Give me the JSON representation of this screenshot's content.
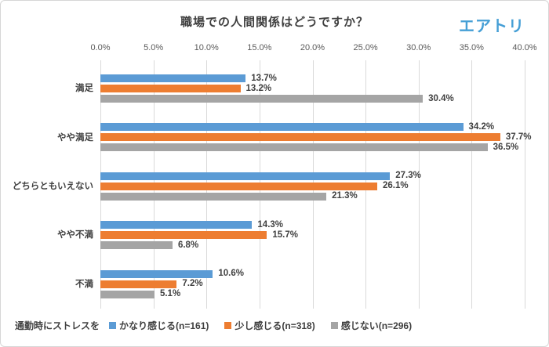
{
  "header": {
    "title": "職場での人間関係はどうですか？",
    "logo_text": "エアトリ",
    "logo_color": "#459fd6"
  },
  "legend": {
    "title": "通勤時にストレスを"
  },
  "chart_data": {
    "type": "bar",
    "orientation": "horizontal",
    "title": "職場での人間関係はどうですか？",
    "categories": [
      "満足",
      "やや満足",
      "どちらともいえない",
      "やや不満",
      "不満"
    ],
    "series": [
      {
        "name": "かなり感じる(n=161)",
        "color": "#5B9BD5",
        "values": [
          13.7,
          34.2,
          27.3,
          14.3,
          10.6
        ],
        "labels": [
          "13.7%",
          "34.2%",
          "27.3%",
          "14.3%",
          "10.6%"
        ]
      },
      {
        "name": "少し感じる(n=318)",
        "color": "#ED7D31",
        "values": [
          13.2,
          37.7,
          26.1,
          15.7,
          7.2
        ],
        "labels": [
          "13.2%",
          "37.7%",
          "26.1%",
          "15.7%",
          "7.2%"
        ]
      },
      {
        "name": "感じない(n=296)",
        "color": "#A5A5A5",
        "values": [
          30.4,
          36.5,
          21.3,
          6.8,
          5.1
        ],
        "labels": [
          "30.4%",
          "36.5%",
          "21.3%",
          "6.8%",
          "5.1%"
        ]
      }
    ],
    "x_axis": {
      "min": 0,
      "max": 40,
      "step": 5,
      "tick_labels": [
        "0.0%",
        "5.0%",
        "10.0%",
        "15.0%",
        "20.0%",
        "25.0%",
        "30.0%",
        "35.0%",
        "40.0%"
      ]
    },
    "grid": true,
    "gridline_color": "#d9d9d9",
    "legend_position": "bottom",
    "value_labels": "outside-end"
  }
}
